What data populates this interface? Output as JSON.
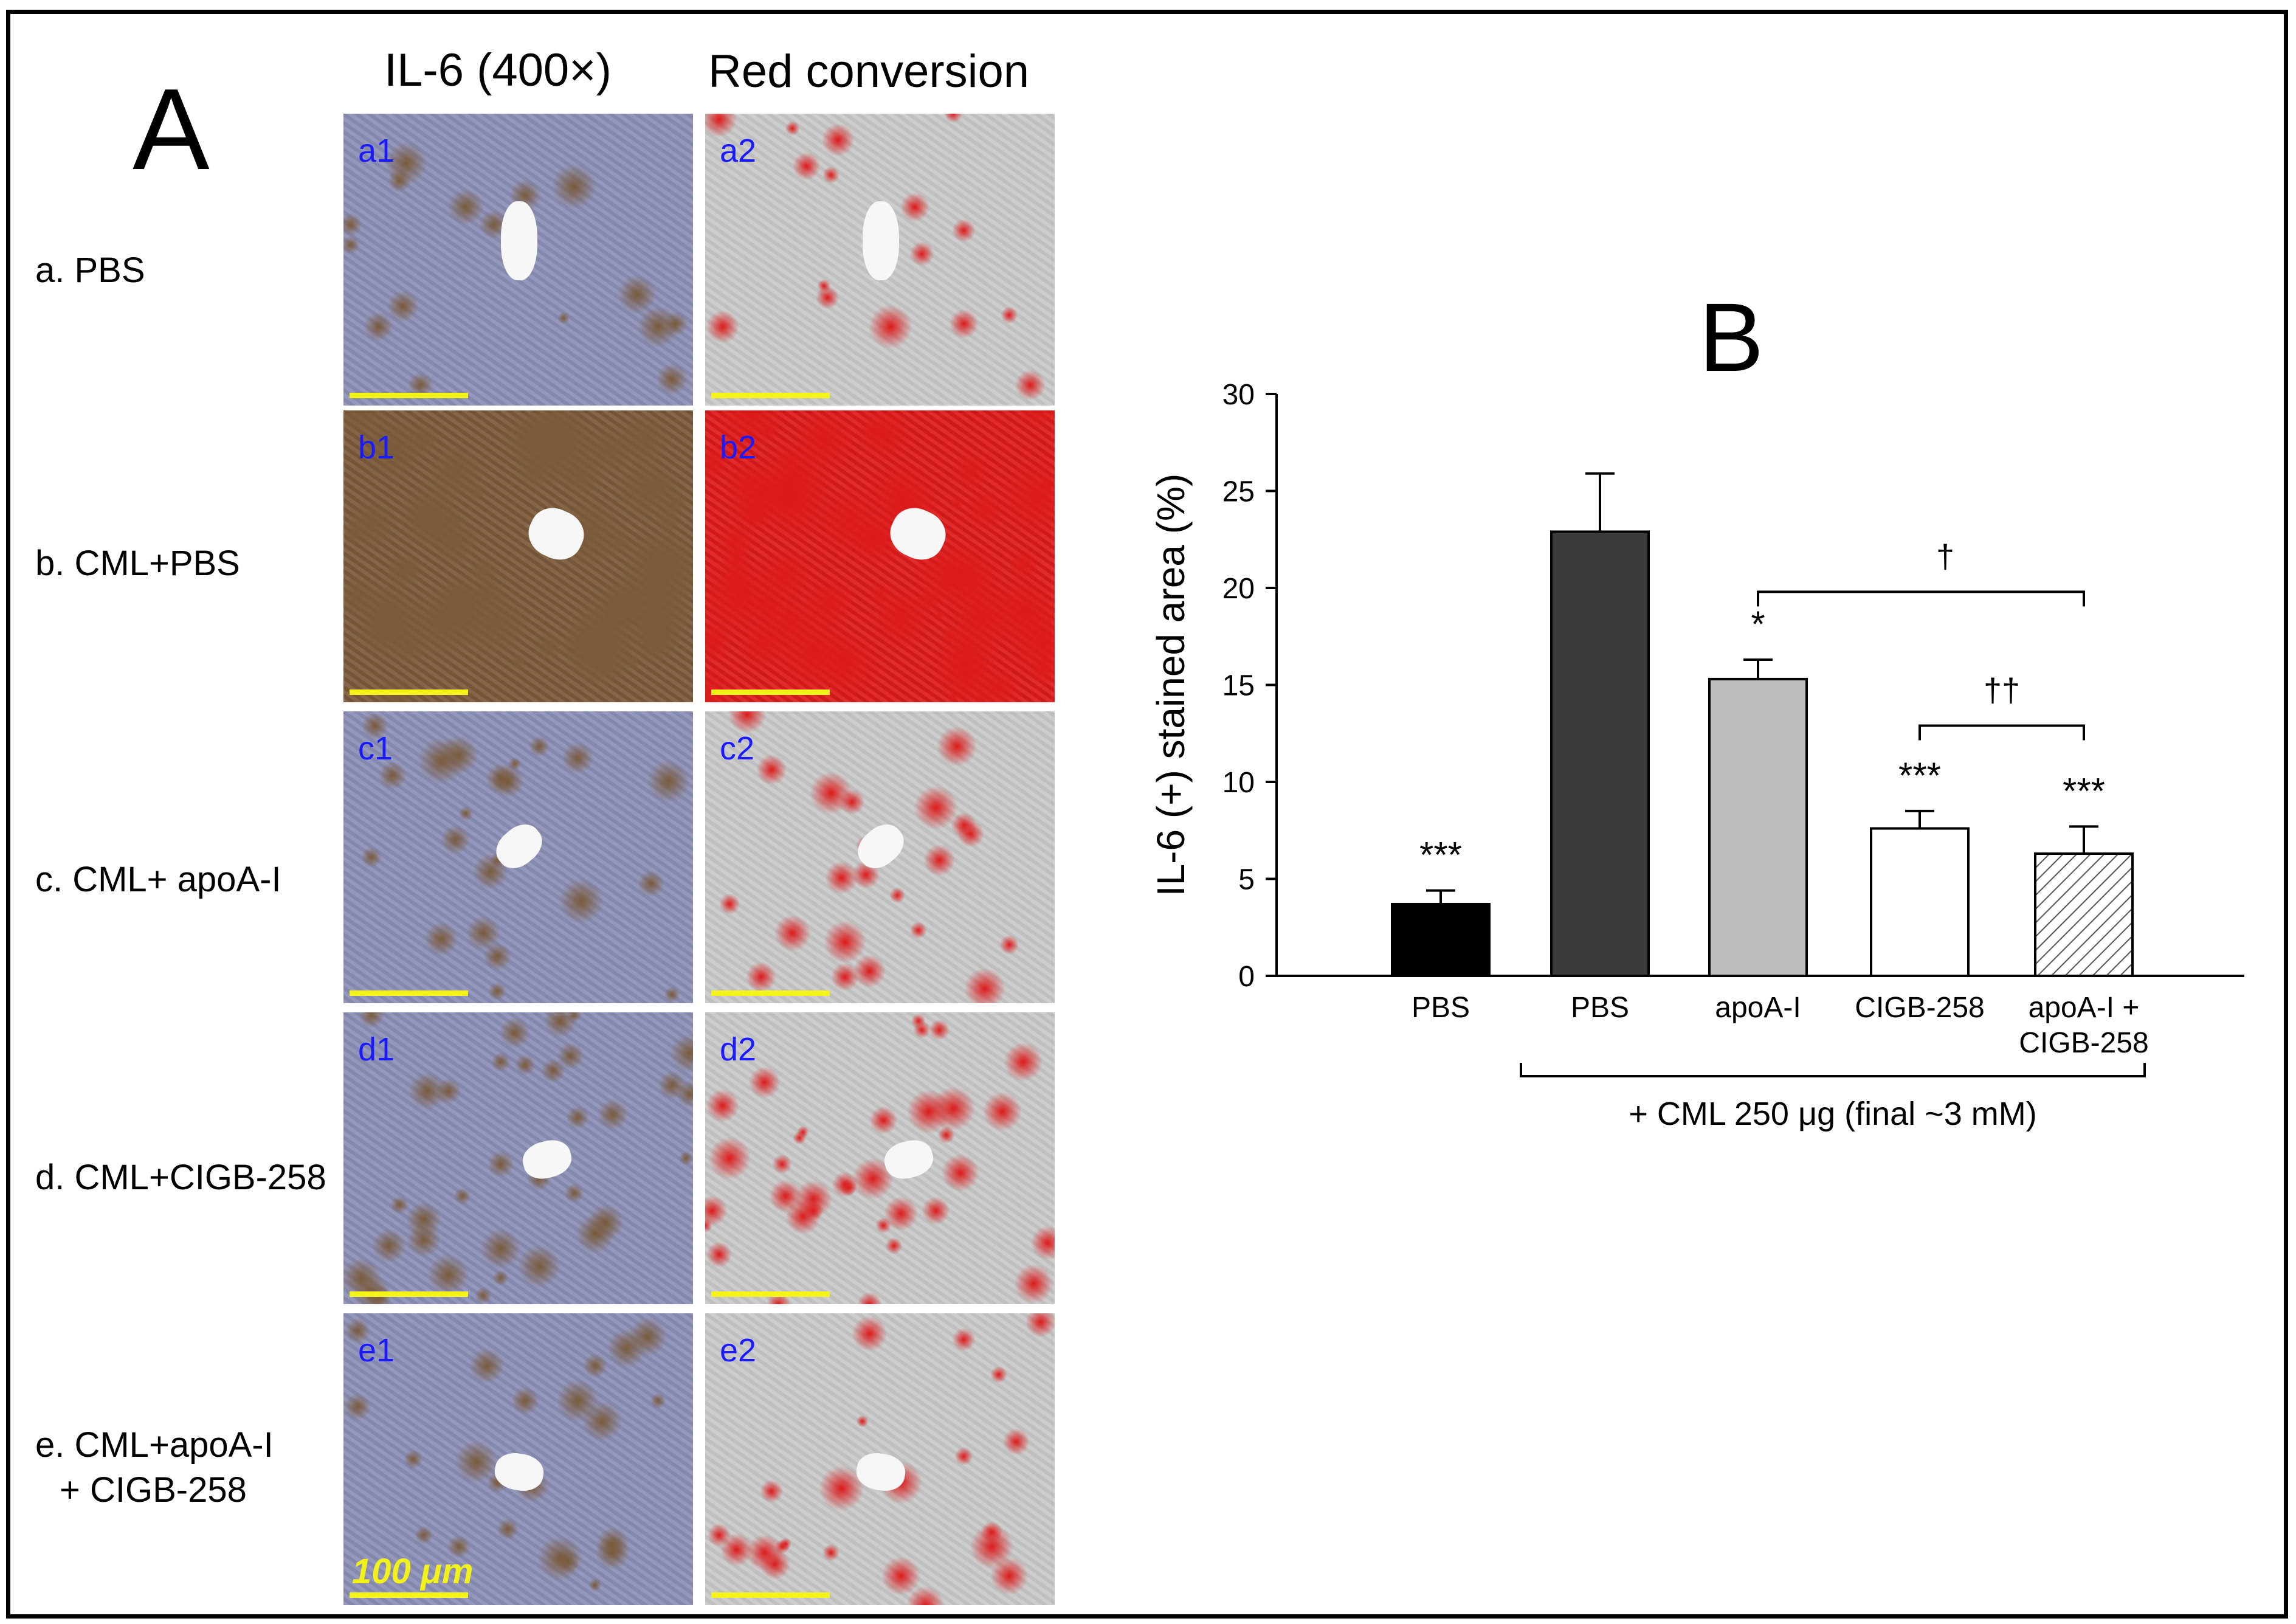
{
  "panel_a": {
    "letter": "A",
    "columns": [
      "IL-6 (400×)",
      "Red conversion"
    ],
    "rows": [
      {
        "label_lines": [
          "a. PBS"
        ],
        "tags": [
          "a1",
          "a2"
        ],
        "stain": "normal"
      },
      {
        "label_lines": [
          "b. CML+PBS"
        ],
        "tags": [
          "b1",
          "b2"
        ],
        "stain": "heavy"
      },
      {
        "label_lines": [
          "c. CML+ apoA-I"
        ],
        "tags": [
          "c1",
          "c2"
        ],
        "stain": "light"
      },
      {
        "label_lines": [
          "d. CML+CIGB-258"
        ],
        "tags": [
          "d1",
          "d2"
        ],
        "stain": "medium"
      },
      {
        "label_lines": [
          "e. CML+apoA-I",
          "+ CIGB-258"
        ],
        "tags": [
          "e1",
          "e2"
        ],
        "stain": "light"
      }
    ],
    "scale_label": "100 μm",
    "colors": {
      "il6_tissue": "#8c8fb6",
      "brown_stain": "#7a5a3a",
      "red_conversion": "#dd1a1a",
      "grey_tissue": "#c9c9c9",
      "scalebar": "#f4f41a",
      "tag": "#1a1aff"
    }
  },
  "chart_data": {
    "type": "bar",
    "panel_letter": "B",
    "ylabel": "IL-6 (+) stained area (%)",
    "ylim": [
      0,
      30
    ],
    "yticks": [
      0,
      5,
      10,
      15,
      20,
      25,
      30
    ],
    "categories": [
      [
        "PBS"
      ],
      [
        "PBS"
      ],
      [
        "apoA-I"
      ],
      [
        "CIGB-258"
      ],
      [
        "apoA-I +",
        "CIGB-258"
      ]
    ],
    "values": [
      3.7,
      22.9,
      15.3,
      7.6,
      6.3
    ],
    "errors": [
      0.7,
      3.0,
      1.0,
      0.9,
      1.4
    ],
    "fills": [
      "#000000",
      "#3b3b3b",
      "#bdbdbd",
      "#ffffff",
      "hatch"
    ],
    "significance": [
      "***",
      "",
      "*",
      "***",
      "***"
    ],
    "brackets": [
      {
        "from": 2,
        "to": 4,
        "label": "†",
        "y": 19.8
      },
      {
        "from": 3,
        "to": 4,
        "label": "††",
        "y": 12.9
      }
    ],
    "group_bracket": {
      "from": 1,
      "to": 4,
      "label": "+ CML 250 μg (final ~3 mM)"
    },
    "grid": false
  }
}
